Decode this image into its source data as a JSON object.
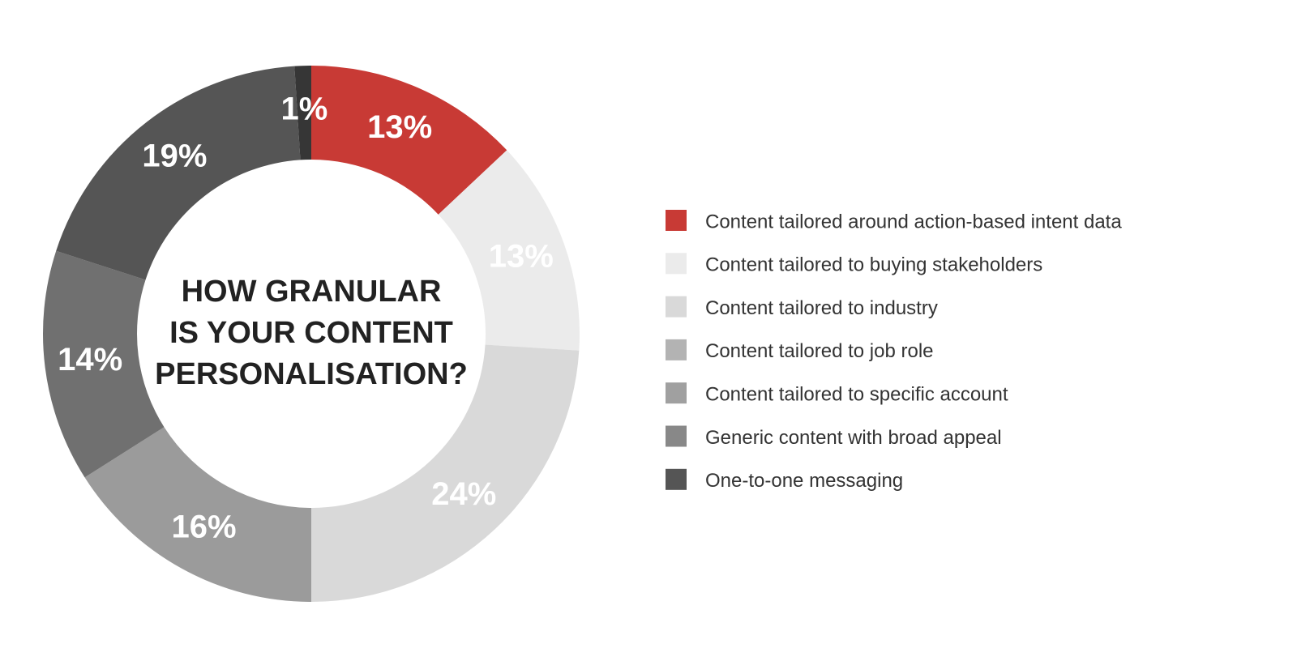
{
  "chart_data": {
    "type": "donut",
    "title": [
      "HOW GRANULAR",
      "IS YOUR CONTENT",
      "PERSONALISATION?"
    ],
    "categories": [
      "Content tailored around action-based intent data",
      "Content tailored to buying stakeholders",
      "Content tailored to industry",
      "Content tailored to job role",
      "Content tailored to specific account",
      "Generic content with broad appeal",
      "One-to-one messaging"
    ],
    "values": [
      13,
      13,
      24,
      16,
      14,
      19,
      1
    ],
    "value_labels": [
      "13%",
      "13%",
      "24%",
      "16%",
      "14%",
      "19%",
      "1%"
    ],
    "colors": [
      "#c83a35",
      "#ebebeb",
      "#d9d9d9",
      "#9b9b9b",
      "#707070",
      "#555555",
      "#363636"
    ],
    "legend_colors": [
      "#c83a35",
      "#ebebeb",
      "#d9d9d9",
      "#b3b3b3",
      "#a0a0a0",
      "#888888",
      "#555555"
    ]
  }
}
